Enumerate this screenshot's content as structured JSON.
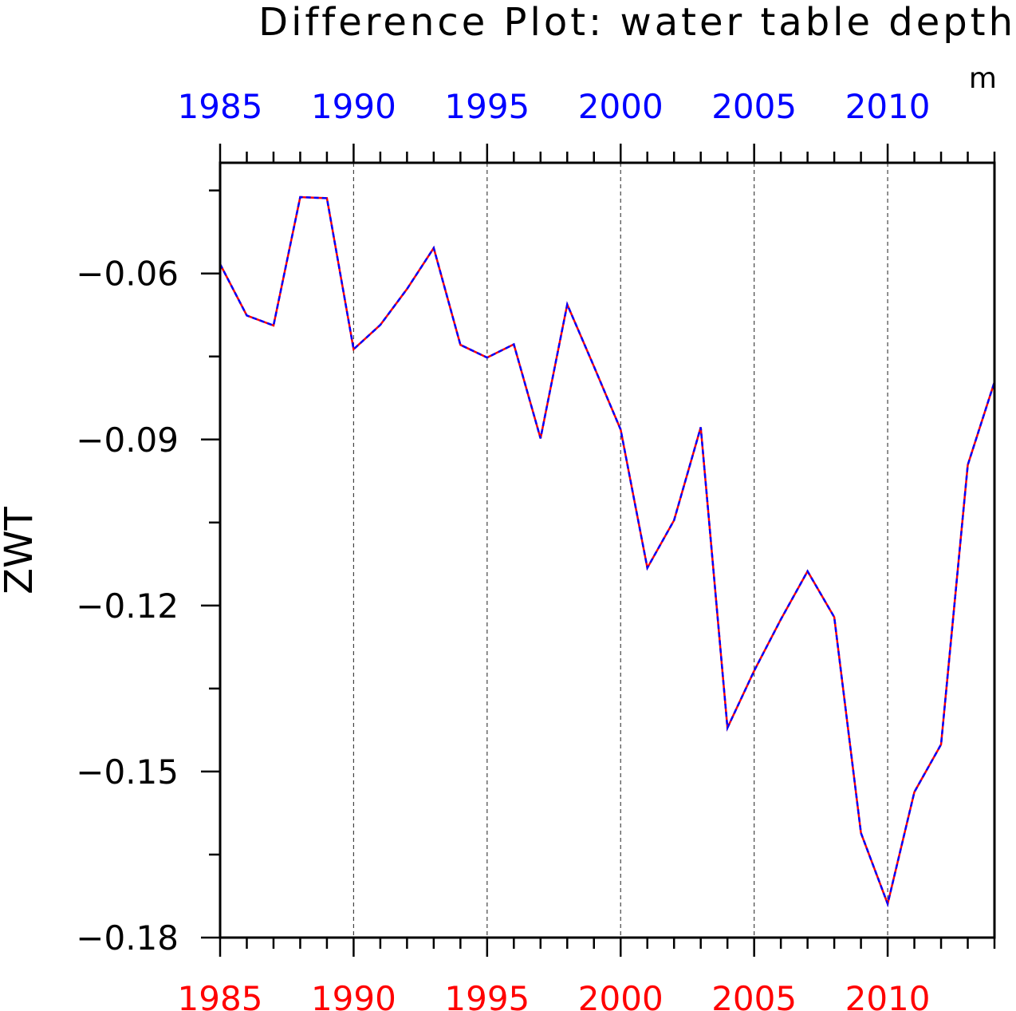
{
  "chart_data": {
    "type": "line",
    "title": "Difference Plot: water table depth",
    "units": "m",
    "xlabel": "",
    "ylabel": "ZWT",
    "xlim": [
      1985,
      2014
    ],
    "ylim": [
      -0.18,
      -0.04
    ],
    "x_ticks": [
      1985,
      1990,
      1995,
      2000,
      2005,
      2010
    ],
    "x_tick_labels": [
      "1985",
      "1990",
      "1995",
      "2000",
      "2005",
      "2010"
    ],
    "y_ticks": [
      -0.06,
      -0.09,
      -0.12,
      -0.15,
      -0.18
    ],
    "y_tick_labels": [
      "−0.06",
      "−0.09",
      "−0.12",
      "−0.15",
      "−0.18"
    ],
    "vertical_gridlines": [
      1990,
      1995,
      2000,
      2005,
      2010
    ],
    "top_axis_color": "#0000ff",
    "bottom_axis_color": "#ff0000",
    "x": [
      1985,
      1986,
      1987,
      1988,
      1989,
      1990,
      1991,
      1992,
      1993,
      1994,
      1995,
      1996,
      1997,
      1998,
      1999,
      2000,
      2001,
      2002,
      2003,
      2004,
      2005,
      2006,
      2007,
      2008,
      2009,
      2010,
      2011,
      2012,
      2013,
      2014
    ],
    "series": [
      {
        "color": "#ff0000",
        "dash": "solid",
        "values": [
          -0.0583,
          -0.0676,
          -0.0694,
          -0.0462,
          -0.0464,
          -0.0737,
          -0.0693,
          -0.0628,
          -0.0554,
          -0.0729,
          -0.0752,
          -0.0728,
          -0.0898,
          -0.0656,
          -0.0768,
          -0.0882,
          -0.1132,
          -0.1046,
          -0.0878,
          -0.1421,
          -0.1318,
          -0.1225,
          -0.1138,
          -0.1221,
          -0.1611,
          -0.1739,
          -0.1537,
          -0.1451,
          -0.0946,
          -0.0796
        ]
      },
      {
        "color": "#0000ff",
        "dash": "dashed",
        "values": [
          -0.0583,
          -0.0676,
          -0.0694,
          -0.0462,
          -0.0464,
          -0.0737,
          -0.0693,
          -0.0628,
          -0.0554,
          -0.0729,
          -0.0752,
          -0.0728,
          -0.0898,
          -0.0656,
          -0.0768,
          -0.0882,
          -0.1132,
          -0.1046,
          -0.0878,
          -0.1421,
          -0.1318,
          -0.1225,
          -0.1138,
          -0.1221,
          -0.1611,
          -0.1739,
          -0.1537,
          -0.1451,
          -0.0946,
          -0.0796
        ]
      }
    ]
  }
}
